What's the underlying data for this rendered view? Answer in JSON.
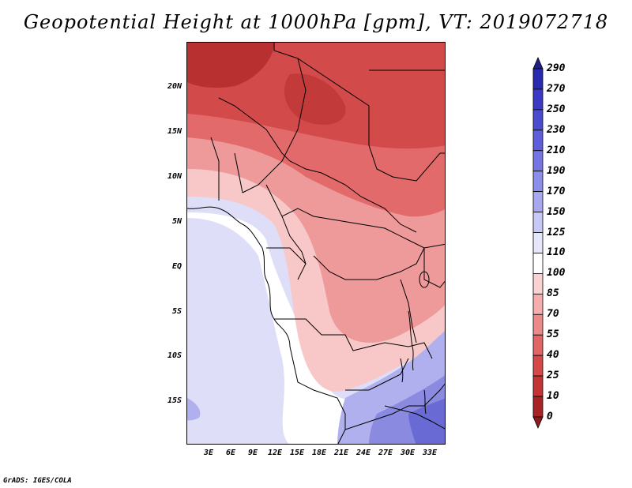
{
  "title": "Geopotential Height at 1000hPa [gpm], VT: 2019072718",
  "footer": "GrADS: IGES/COLA",
  "map": {
    "lat_labels": [
      "20N",
      "15N",
      "10N",
      "5N",
      "EQ",
      "5S",
      "10S",
      "15S"
    ],
    "lon_labels": [
      "3E",
      "6E",
      "9E",
      "12E",
      "15E",
      "18E",
      "21E",
      "24E",
      "27E",
      "30E",
      "33E"
    ]
  },
  "colorbar": {
    "labels": [
      "290",
      "270",
      "250",
      "230",
      "210",
      "190",
      "170",
      "150",
      "125",
      "110",
      "100",
      "85",
      "70",
      "55",
      "40",
      "25",
      "10",
      "0"
    ],
    "colors": [
      "#1f1f8a",
      "#2a2ab0",
      "#3a3ac4",
      "#4b4bd0",
      "#5e5edb",
      "#7474e3",
      "#8c8ceb",
      "#a8a8f0",
      "#c8c8f6",
      "#e6e6fb",
      "#ffffff",
      "#fbd2d2",
      "#f5adad",
      "#ec8a8a",
      "#e06666",
      "#d44848",
      "#c43434",
      "#a82424",
      "#8e1a1a"
    ]
  },
  "field": {
    "colors": {
      "deep_red": "#c23a3a",
      "red": "#d24a4a",
      "mid_red": "#e26a6a",
      "light_red": "#ee9a9a",
      "pink": "#f8c8c8",
      "white": "#ffffff",
      "light_blue": "#dedef8",
      "blue": "#b0b0ee",
      "mid_blue": "#8a8ae0",
      "dark_blue": "#6a6ad4"
    }
  }
}
